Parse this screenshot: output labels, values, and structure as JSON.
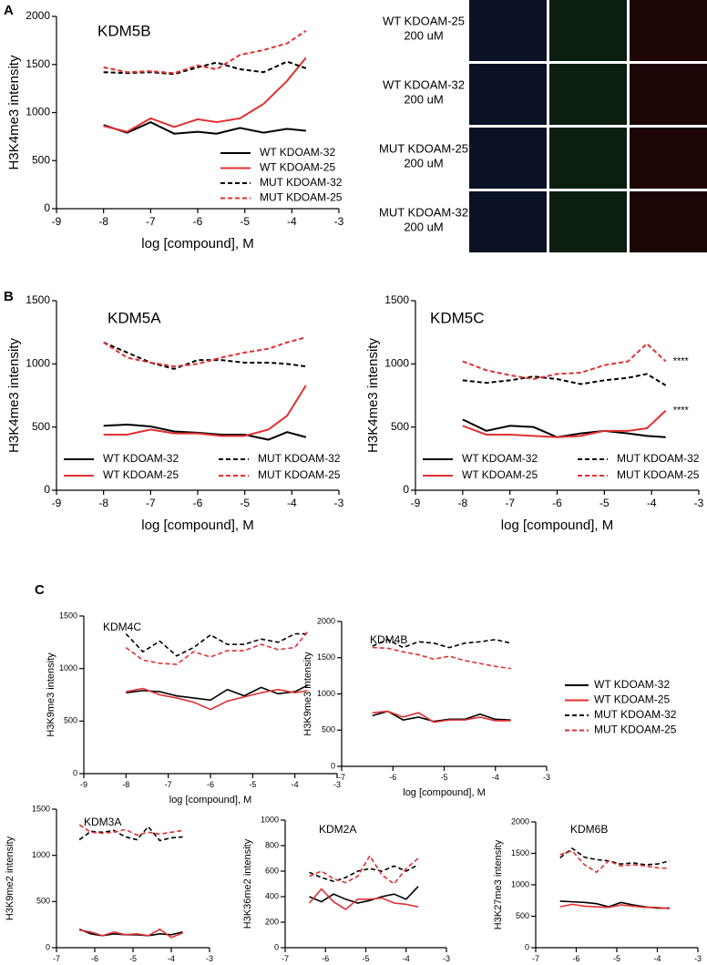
{
  "panels": [
    "A",
    "B",
    "C"
  ],
  "image_panel": {
    "row_labels": [
      [
        "WT KDOAM-25",
        "200 uM"
      ],
      [
        "WT KDOAM-32",
        "200 uM"
      ],
      [
        "MUT KDOAM-25",
        "200 uM"
      ],
      [
        "MUT KDOAM-32",
        "200 uM"
      ]
    ]
  },
  "shared_legend": [
    {
      "name": "WT KDOAM-32",
      "color": "#000000",
      "dash": false
    },
    {
      "name": "WT KDOAM-25",
      "color": "#e03030",
      "dash": false
    },
    {
      "name": "MUT KDOAM-32",
      "color": "#000000",
      "dash": true
    },
    {
      "name": "MUT KDOAM-25",
      "color": "#e03030",
      "dash": true
    }
  ],
  "chart_data": [
    {
      "type": "line",
      "title": "KDM5B",
      "x_label": "log [compound], M",
      "y_label": "H3K4me3 intensity",
      "x": [
        -8,
        -7.5,
        -7,
        -6.5,
        -6,
        -5.6,
        -5.1,
        -4.6,
        -4.1,
        -3.7
      ],
      "xlim": [
        -9,
        -3
      ],
      "xticks": [
        -9,
        -8,
        -7,
        -6,
        -5,
        -4,
        -3
      ],
      "ylim": [
        0,
        2000
      ],
      "yticks": [
        0,
        500,
        1000,
        1500,
        2000
      ],
      "legend": "lower right",
      "series": [
        {
          "name": "WT KDOAM-32",
          "color": "#000000",
          "dash": false,
          "values": [
            870,
            790,
            900,
            780,
            800,
            780,
            840,
            790,
            830,
            810
          ]
        },
        {
          "name": "WT KDOAM-25",
          "color": "#e03030",
          "dash": false,
          "values": [
            860,
            800,
            940,
            850,
            930,
            900,
            940,
            1090,
            1330,
            1570
          ]
        },
        {
          "name": "MUT KDOAM-32",
          "color": "#000000",
          "dash": true,
          "values": [
            1420,
            1410,
            1420,
            1400,
            1470,
            1520,
            1450,
            1420,
            1530,
            1460
          ]
        },
        {
          "name": "MUT KDOAM-25",
          "color": "#e03030",
          "dash": true,
          "values": [
            1470,
            1420,
            1430,
            1410,
            1490,
            1450,
            1600,
            1650,
            1720,
            1850
          ]
        }
      ]
    },
    {
      "type": "line",
      "title": "KDM5A",
      "x_label": "log [compound], M",
      "y_label": "H3K4me3 intensity",
      "x": [
        -8,
        -7.5,
        -7,
        -6.5,
        -6,
        -5.5,
        -5,
        -4.5,
        -4.1,
        -3.7
      ],
      "xlim": [
        -9,
        -3
      ],
      "xticks": [
        -9,
        -8,
        -7,
        -6,
        -5,
        -4,
        -3
      ],
      "ylim": [
        0,
        1500
      ],
      "yticks": [
        0,
        500,
        1000,
        1500
      ],
      "legend": "lower center",
      "series": [
        {
          "name": "WT KDOAM-32",
          "color": "#000000",
          "dash": false,
          "values": [
            510,
            520,
            505,
            465,
            455,
            440,
            440,
            400,
            460,
            420
          ]
        },
        {
          "name": "WT KDOAM-25",
          "color": "#e03030",
          "dash": false,
          "values": [
            440,
            440,
            480,
            450,
            450,
            430,
            430,
            480,
            590,
            830
          ]
        },
        {
          "name": "MUT KDOAM-32",
          "color": "#000000",
          "dash": true,
          "values": [
            1170,
            1090,
            1010,
            960,
            1030,
            1030,
            1010,
            1010,
            1000,
            980
          ]
        },
        {
          "name": "MUT KDOAM-25",
          "color": "#e03030",
          "dash": true,
          "values": [
            1170,
            1050,
            1010,
            980,
            1000,
            1050,
            1090,
            1120,
            1170,
            1210
          ]
        }
      ]
    },
    {
      "type": "line",
      "title": "KDM5C",
      "x_label": "log [compound], M",
      "y_label": "H3K4me3 intensity",
      "x": [
        -8,
        -7.5,
        -7,
        -6.5,
        -6,
        -5.5,
        -5,
        -4.5,
        -4.1,
        -3.7
      ],
      "xlim": [
        -9,
        -3
      ],
      "xticks": [
        -9,
        -8,
        -7,
        -6,
        -5,
        -4,
        -3
      ],
      "ylim": [
        0,
        1500
      ],
      "yticks": [
        0,
        500,
        1000,
        1500
      ],
      "legend": "lower center",
      "annotations": [
        "****",
        "****"
      ],
      "series": [
        {
          "name": "WT KDOAM-32",
          "color": "#000000",
          "dash": false,
          "values": [
            560,
            470,
            510,
            500,
            420,
            450,
            470,
            450,
            430,
            420
          ]
        },
        {
          "name": "WT KDOAM-25",
          "color": "#e03030",
          "dash": false,
          "values": [
            510,
            440,
            440,
            430,
            420,
            430,
            470,
            470,
            490,
            630
          ]
        },
        {
          "name": "MUT KDOAM-32",
          "color": "#000000",
          "dash": true,
          "values": [
            870,
            850,
            870,
            900,
            880,
            840,
            870,
            890,
            920,
            830
          ]
        },
        {
          "name": "MUT KDOAM-25",
          "color": "#e03030",
          "dash": true,
          "values": [
            1020,
            950,
            910,
            880,
            920,
            930,
            990,
            1020,
            1160,
            1020
          ]
        }
      ]
    },
    {
      "type": "line",
      "title": "KDM4C",
      "x_label": "log [compound], M",
      "y_label": "H3K9me3 intensity",
      "x": [
        -8,
        -7.6,
        -7.2,
        -6.8,
        -6.4,
        -6,
        -5.6,
        -5.2,
        -4.8,
        -4.4,
        -4,
        -3.7
      ],
      "xlim": [
        -9,
        -3
      ],
      "xticks": [
        -9,
        -8,
        -7,
        -6,
        -5,
        -4,
        -3
      ],
      "ylim": [
        0,
        1500
      ],
      "yticks": [
        0,
        500,
        1000,
        1500
      ],
      "legend": "none",
      "series": [
        {
          "color": "#000000",
          "dash": false,
          "values": [
            770,
            790,
            780,
            740,
            720,
            700,
            800,
            740,
            820,
            760,
            780,
            840
          ]
        },
        {
          "color": "#e03030",
          "dash": false,
          "values": [
            780,
            810,
            750,
            720,
            680,
            610,
            690,
            730,
            770,
            800,
            770,
            790
          ]
        },
        {
          "color": "#000000",
          "dash": true,
          "values": [
            1330,
            1160,
            1260,
            1120,
            1200,
            1320,
            1230,
            1230,
            1280,
            1250,
            1330,
            1330
          ]
        },
        {
          "color": "#e03030",
          "dash": true,
          "values": [
            1200,
            1080,
            1050,
            1040,
            1160,
            1110,
            1170,
            1170,
            1230,
            1180,
            1200,
            1350
          ]
        }
      ]
    },
    {
      "type": "line",
      "title": "KDM4B",
      "x_label": "log [compound], M",
      "y_label": "H3K9me3 intensity",
      "x": [
        -6.4,
        -6.1,
        -5.8,
        -5.5,
        -5.2,
        -4.9,
        -4.6,
        -4.3,
        -4,
        -3.7
      ],
      "xlim": [
        -7,
        -3
      ],
      "xticks": [
        -7,
        -6,
        -5,
        -4,
        -3
      ],
      "ylim": [
        0,
        2000
      ],
      "yticks": [
        0,
        500,
        1000,
        1500,
        2000
      ],
      "legend": "none",
      "series": [
        {
          "color": "#000000",
          "dash": false,
          "values": [
            700,
            760,
            640,
            680,
            620,
            650,
            650,
            720,
            650,
            640
          ]
        },
        {
          "color": "#e03030",
          "dash": false,
          "values": [
            740,
            760,
            680,
            740,
            610,
            640,
            640,
            680,
            630,
            630
          ]
        },
        {
          "color": "#000000",
          "dash": true,
          "values": [
            1660,
            1750,
            1640,
            1720,
            1700,
            1640,
            1700,
            1720,
            1750,
            1700
          ]
        },
        {
          "color": "#e03030",
          "dash": true,
          "values": [
            1640,
            1630,
            1580,
            1540,
            1480,
            1520,
            1460,
            1420,
            1380,
            1350
          ]
        }
      ]
    },
    {
      "type": "line",
      "title": "KDM3A",
      "x_label": "log [compound], M",
      "y_label": "H3K9me2 intensity",
      "x": [
        -6.4,
        -6.1,
        -5.8,
        -5.5,
        -5.2,
        -4.9,
        -4.6,
        -4.3,
        -4,
        -3.7
      ],
      "xlim": [
        -7,
        -3
      ],
      "xticks": [
        -7,
        -6,
        -5,
        -4,
        -3
      ],
      "ylim": [
        0,
        1500
      ],
      "yticks": [
        0,
        500,
        1000,
        1500
      ],
      "legend": "none",
      "series": [
        {
          "color": "#000000",
          "dash": false,
          "values": [
            200,
            150,
            130,
            150,
            140,
            140,
            130,
            150,
            140,
            170
          ]
        },
        {
          "color": "#e03030",
          "dash": false,
          "values": [
            190,
            170,
            130,
            170,
            140,
            150,
            130,
            200,
            110,
            160
          ]
        },
        {
          "color": "#000000",
          "dash": true,
          "values": [
            1170,
            1260,
            1250,
            1270,
            1200,
            1170,
            1310,
            1160,
            1190,
            1200
          ]
        },
        {
          "color": "#e03030",
          "dash": true,
          "values": [
            1330,
            1250,
            1240,
            1250,
            1280,
            1220,
            1250,
            1230,
            1250,
            1270
          ]
        }
      ]
    },
    {
      "type": "line",
      "title": "KDM2A",
      "x_label": "log [compound], M",
      "y_label": "H3K36me2 intensity",
      "x": [
        -6.4,
        -6.1,
        -5.8,
        -5.5,
        -5.2,
        -4.9,
        -4.6,
        -4.3,
        -4,
        -3.7
      ],
      "xlim": [
        -7,
        -3
      ],
      "xticks": [
        -7,
        -6,
        -5,
        -4,
        -3
      ],
      "ylim": [
        0,
        1000
      ],
      "yticks": [
        0,
        200,
        400,
        600,
        800,
        1000
      ],
      "legend": "none",
      "series": [
        {
          "color": "#000000",
          "dash": false,
          "values": [
            400,
            360,
            420,
            380,
            350,
            370,
            400,
            420,
            380,
            480
          ]
        },
        {
          "color": "#e03030",
          "dash": false,
          "values": [
            350,
            460,
            360,
            300,
            380,
            380,
            390,
            350,
            340,
            320
          ]
        },
        {
          "color": "#000000",
          "dash": true,
          "values": [
            590,
            550,
            520,
            550,
            600,
            620,
            600,
            640,
            600,
            650
          ]
        },
        {
          "color": "#e03030",
          "dash": true,
          "values": [
            560,
            600,
            540,
            510,
            560,
            720,
            570,
            500,
            620,
            700
          ]
        }
      ]
    },
    {
      "type": "line",
      "title": "KDM6B",
      "x_label": "log [compound], M",
      "y_label": "H3K27me3 intensity",
      "x": [
        -6.4,
        -6.1,
        -5.8,
        -5.5,
        -5.2,
        -4.9,
        -4.6,
        -4.3,
        -4,
        -3.7
      ],
      "xlim": [
        -7,
        -3
      ],
      "xticks": [
        -7,
        -6,
        -5,
        -4,
        -3
      ],
      "ylim": [
        0,
        2000
      ],
      "yticks": [
        0,
        500,
        1000,
        1500,
        2000
      ],
      "legend": "none",
      "series": [
        {
          "color": "#000000",
          "dash": false,
          "values": [
            740,
            730,
            720,
            700,
            650,
            720,
            680,
            650,
            630,
            630
          ]
        },
        {
          "color": "#e03030",
          "dash": false,
          "values": [
            650,
            690,
            660,
            650,
            640,
            680,
            660,
            640,
            640,
            620
          ]
        },
        {
          "color": "#000000",
          "dash": true,
          "values": [
            1430,
            1580,
            1440,
            1400,
            1380,
            1330,
            1350,
            1320,
            1330,
            1380
          ]
        },
        {
          "color": "#e03030",
          "dash": true,
          "values": [
            1480,
            1540,
            1320,
            1200,
            1380,
            1300,
            1320,
            1300,
            1270,
            1260
          ]
        }
      ]
    }
  ]
}
